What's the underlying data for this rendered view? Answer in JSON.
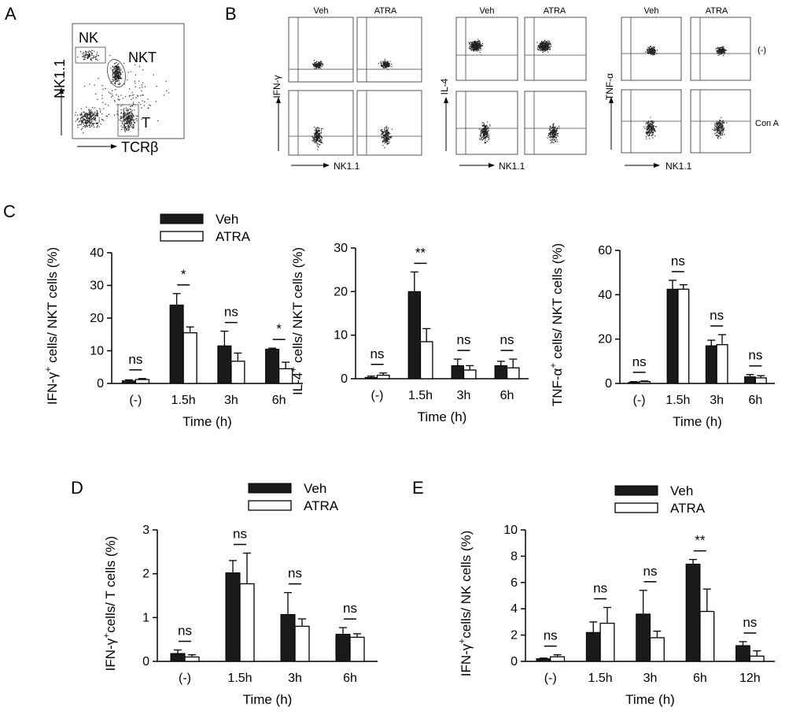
{
  "panels": {
    "A": {
      "label": "A",
      "gates": [
        "NK",
        "NKT",
        "T"
      ],
      "ylabel": "NK1.1",
      "xlabel": "TCRβ"
    },
    "B": {
      "label": "B",
      "col_labels": [
        "Veh",
        "ATRA"
      ],
      "row_labels": [
        "(-)",
        "Con A"
      ],
      "xlabel": "NK1.1",
      "groups": [
        {
          "ylabel": "IFN-γ"
        },
        {
          "ylabel": "IL-4"
        },
        {
          "ylabel": "TNF-α"
        }
      ]
    },
    "C": {
      "label": "C"
    },
    "D": {
      "label": "D"
    },
    "E": {
      "label": "E"
    }
  },
  "legend": {
    "veh": "Veh",
    "atra": "ATRA"
  },
  "colors": {
    "veh": "#1a1a1a",
    "atra": "#ffffff"
  },
  "chart_data": [
    {
      "type": "bar",
      "panel": "C",
      "categories": [
        "(-)",
        "1.5h",
        "3h",
        "6h"
      ],
      "series": [
        {
          "name": "Veh",
          "values": [
            0.8,
            24,
            11.5,
            10.5
          ],
          "errors": [
            0.3,
            3.5,
            4.5,
            0.3
          ]
        },
        {
          "name": "ATRA",
          "values": [
            1.2,
            15.5,
            6.8,
            4.5
          ],
          "errors": [
            0.3,
            1.8,
            2.5,
            2.0
          ]
        }
      ],
      "significance": [
        "ns",
        "*",
        "ns",
        "*"
      ],
      "ylim": [
        0,
        40
      ],
      "yticks": [
        0,
        10,
        20,
        30,
        40
      ],
      "xlabel": "Time (h)",
      "ylabel_parts": [
        "IFN-γ",
        "+",
        " cells/ NKT cells (%)"
      ]
    },
    {
      "type": "bar",
      "panel": "C",
      "categories": [
        "(-)",
        "1.5h",
        "3h",
        "6h"
      ],
      "series": [
        {
          "name": "Veh",
          "values": [
            0.3,
            20,
            3,
            3
          ],
          "errors": [
            0.3,
            4.5,
            1.5,
            1.0
          ]
        },
        {
          "name": "ATRA",
          "values": [
            0.8,
            8.5,
            2,
            2.5
          ],
          "errors": [
            0.5,
            3.0,
            1.0,
            2.0
          ]
        }
      ],
      "significance": [
        "ns",
        "**",
        "ns",
        "ns"
      ],
      "ylim": [
        0,
        30
      ],
      "yticks": [
        0,
        10,
        20,
        30
      ],
      "xlabel": "Time (h)",
      "ylabel_parts": [
        "IL-4",
        "+",
        " cells/ NKT cells (%)"
      ]
    },
    {
      "type": "bar",
      "panel": "C",
      "categories": [
        "(-)",
        "1.5h",
        "3h",
        "6h"
      ],
      "series": [
        {
          "name": "Veh",
          "values": [
            0.5,
            42.5,
            17,
            3
          ],
          "errors": [
            0.3,
            4.0,
            2.5,
            1.0
          ]
        },
        {
          "name": "ATRA",
          "values": [
            0.8,
            42.5,
            17.5,
            2.5
          ],
          "errors": [
            0.3,
            2.0,
            4.5,
            1.0
          ]
        }
      ],
      "significance": [
        "ns",
        "ns",
        "ns",
        "ns"
      ],
      "ylim": [
        0,
        60
      ],
      "yticks": [
        0,
        20,
        40,
        60
      ],
      "xlabel": "Time (h)",
      "ylabel_parts": [
        "TNF-α",
        "+",
        " cells/ NKT cells (%)"
      ]
    },
    {
      "type": "bar",
      "panel": "D",
      "categories": [
        "(-)",
        "1.5h",
        "3h",
        "6h"
      ],
      "series": [
        {
          "name": "Veh",
          "values": [
            0.18,
            2.02,
            1.07,
            0.62
          ],
          "errors": [
            0.08,
            0.28,
            0.5,
            0.15
          ]
        },
        {
          "name": "ATRA",
          "values": [
            0.1,
            1.77,
            0.8,
            0.55
          ],
          "errors": [
            0.05,
            0.7,
            0.17,
            0.08
          ]
        }
      ],
      "significance": [
        "ns",
        "ns",
        "ns",
        "ns"
      ],
      "ylim": [
        0,
        3
      ],
      "yticks": [
        0,
        1,
        2,
        3
      ],
      "xlabel": "Time (h)",
      "ylabel_parts": [
        "IFN-γ",
        "+",
        "cells/ T cells (%)"
      ]
    },
    {
      "type": "bar",
      "panel": "E",
      "categories": [
        "(-)",
        "1.5h",
        "3h",
        "6h",
        "12h"
      ],
      "series": [
        {
          "name": "Veh",
          "values": [
            0.2,
            2.2,
            3.6,
            7.4,
            1.2
          ],
          "errors": [
            0.05,
            0.8,
            1.8,
            0.35,
            0.3
          ]
        },
        {
          "name": "ATRA",
          "values": [
            0.35,
            2.9,
            1.8,
            3.8,
            0.4
          ],
          "errors": [
            0.15,
            1.2,
            0.5,
            1.7,
            0.4
          ]
        }
      ],
      "significance": [
        "ns",
        "ns",
        "ns",
        "**",
        "ns"
      ],
      "ylim": [
        0,
        10
      ],
      "yticks": [
        0,
        2,
        4,
        6,
        8,
        10
      ],
      "xlabel": "Time (h)",
      "ylabel_parts": [
        "IFN-γ",
        "+",
        "cells/ NK cells (%)"
      ]
    }
  ]
}
